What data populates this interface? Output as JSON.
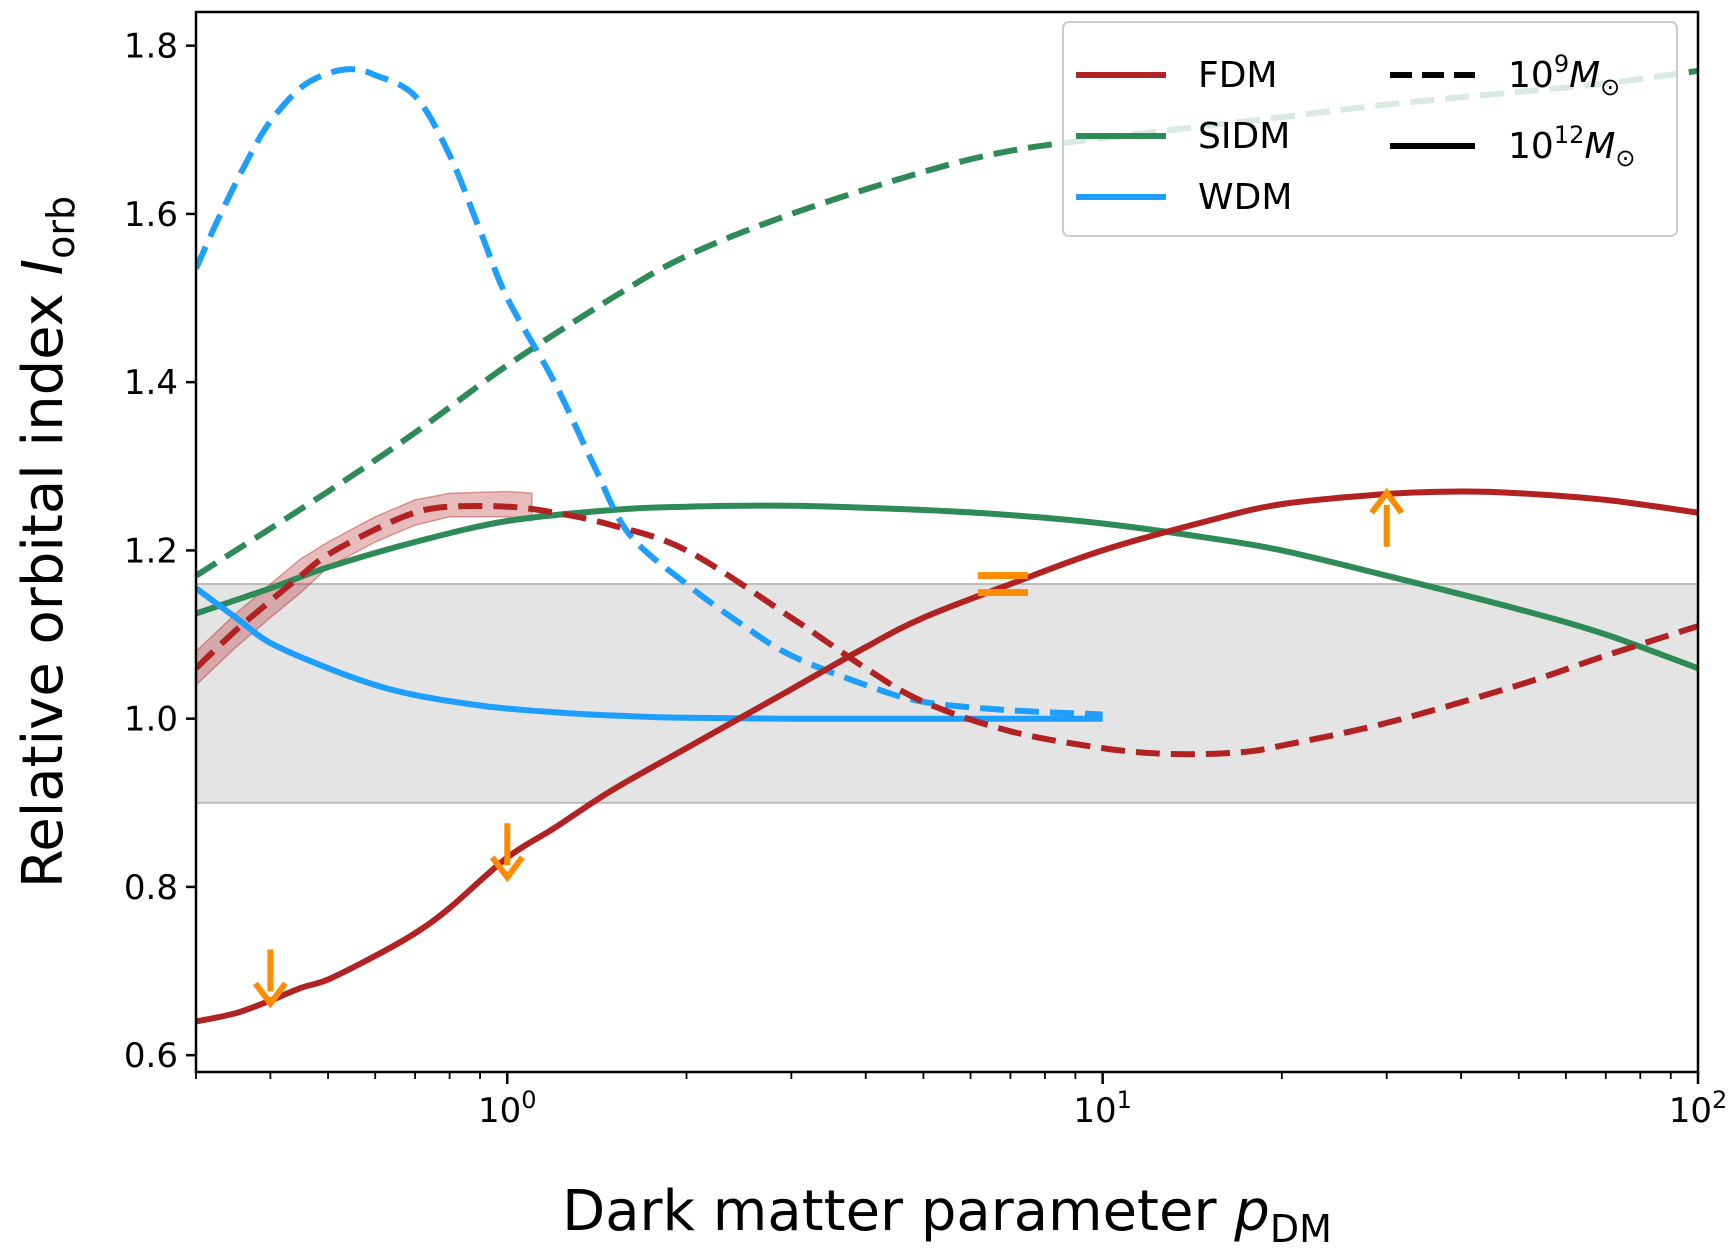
{
  "chart_data": {
    "type": "line",
    "xscale": "log",
    "xlim": [
      0.3,
      100
    ],
    "ylim": [
      0.58,
      1.84
    ],
    "xlabel": {
      "main": "Dark matter parameter ",
      "italic": "p",
      "sub": "DM"
    },
    "ylabel": {
      "main": "Relative orbital index ",
      "italic": "I",
      "sub": "orb"
    },
    "grid": false,
    "x_ticks": [
      {
        "value": 1,
        "base": "10",
        "exp": "0"
      },
      {
        "value": 10,
        "base": "10",
        "exp": "1"
      },
      {
        "value": 100,
        "base": "10",
        "exp": "2"
      }
    ],
    "y_ticks": [
      {
        "value": 0.6,
        "label": "0.6"
      },
      {
        "value": 0.8,
        "label": "0.8"
      },
      {
        "value": 1.0,
        "label": "1.0"
      },
      {
        "value": 1.2,
        "label": "1.2"
      },
      {
        "value": 1.4,
        "label": "1.4"
      },
      {
        "value": 1.6,
        "label": "1.6"
      },
      {
        "value": 1.8,
        "label": "1.8"
      }
    ],
    "colors": {
      "FDM": "#b22222",
      "SIDM": "#2e8b57",
      "WDM": "#1e9fff",
      "marker": "#ff8c00",
      "band": "#d3d3d3"
    },
    "band": {
      "ymin": 0.9,
      "ymax": 1.16
    },
    "legend": {
      "location": "top-right",
      "models": [
        {
          "label": "FDM",
          "color": "#b22222"
        },
        {
          "label": "SIDM",
          "color": "#2e8b57"
        },
        {
          "label": "WDM",
          "color": "#1e9fff"
        }
      ],
      "masses": [
        {
          "style": "dashed",
          "base": "10",
          "exp": "9",
          "unit": "M",
          "subscript": "⊙"
        },
        {
          "style": "solid",
          "base": "10",
          "exp": "12",
          "unit": "M",
          "subscript": "⊙"
        }
      ]
    },
    "series": [
      {
        "name": "SIDM 10^12 Msun",
        "model": "SIDM",
        "mass": "1e12",
        "style": "solid",
        "color": "#2e8b57",
        "x": [
          0.3,
          0.4,
          0.5,
          0.7,
          1.0,
          1.5,
          2,
          3,
          5,
          7,
          10,
          15,
          20,
          30,
          50,
          70,
          100
        ],
        "y": [
          1.125,
          1.155,
          1.18,
          1.21,
          1.235,
          1.248,
          1.252,
          1.253,
          1.248,
          1.242,
          1.232,
          1.215,
          1.2,
          1.17,
          1.13,
          1.1,
          1.06
        ]
      },
      {
        "name": "SIDM 10^9 Msun",
        "model": "SIDM",
        "mass": "1e9",
        "style": "dashed",
        "color": "#2e8b57",
        "x": [
          0.3,
          0.5,
          0.7,
          1.0,
          1.5,
          2,
          3,
          5,
          7,
          10,
          15,
          20,
          30,
          50,
          70,
          100
        ],
        "y": [
          1.17,
          1.27,
          1.34,
          1.42,
          1.5,
          1.55,
          1.6,
          1.65,
          1.675,
          1.69,
          1.705,
          1.715,
          1.73,
          1.745,
          1.755,
          1.77
        ]
      },
      {
        "name": "WDM 10^12 Msun",
        "model": "WDM",
        "mass": "1e12",
        "style": "solid",
        "color": "#1e9fff",
        "x": [
          0.3,
          0.35,
          0.4,
          0.5,
          0.6,
          0.7,
          0.85,
          1.0,
          1.3,
          1.6,
          2,
          3,
          5,
          7,
          10
        ],
        "y": [
          1.155,
          1.12,
          1.09,
          1.06,
          1.04,
          1.028,
          1.018,
          1.012,
          1.006,
          1.003,
          1.001,
          1.0,
          1.0,
          1.0,
          1.0
        ]
      },
      {
        "name": "WDM 10^9 Msun",
        "model": "WDM",
        "mass": "1e9",
        "style": "dashed",
        "color": "#1e9fff",
        "x": [
          0.3,
          0.33,
          0.37,
          0.4,
          0.45,
          0.5,
          0.55,
          0.6,
          0.7,
          0.8,
          0.9,
          1.0,
          1.2,
          1.4,
          1.6,
          2,
          2.5,
          3,
          4,
          5,
          7,
          10
        ],
        "y": [
          1.535,
          1.6,
          1.67,
          1.71,
          1.75,
          1.767,
          1.772,
          1.765,
          1.74,
          1.67,
          1.58,
          1.5,
          1.4,
          1.3,
          1.22,
          1.16,
          1.11,
          1.075,
          1.04,
          1.02,
          1.01,
          1.005
        ]
      },
      {
        "name": "FDM 10^12 Msun",
        "model": "FDM",
        "mass": "1e12",
        "style": "solid",
        "color": "#b22222",
        "x": [
          0.3,
          0.35,
          0.4,
          0.45,
          0.5,
          0.6,
          0.7,
          0.8,
          1.0,
          1.2,
          1.5,
          2,
          3,
          4,
          5,
          7,
          10,
          15,
          20,
          30,
          40,
          50,
          70,
          100
        ],
        "y": [
          0.64,
          0.65,
          0.665,
          0.68,
          0.69,
          0.718,
          0.745,
          0.775,
          0.835,
          0.87,
          0.915,
          0.965,
          1.035,
          1.085,
          1.12,
          1.16,
          1.2,
          1.235,
          1.255,
          1.267,
          1.27,
          1.268,
          1.26,
          1.245
        ]
      },
      {
        "name": "FDM 10^9 Msun",
        "model": "FDM",
        "mass": "1e9",
        "style": "dashed",
        "color": "#b22222",
        "x": [
          0.3,
          0.35,
          0.4,
          0.45,
          0.5,
          0.6,
          0.7,
          0.8,
          1.0,
          1.2,
          1.5,
          2,
          3,
          4,
          5,
          7,
          10,
          13,
          17,
          20,
          30,
          50,
          70,
          100
        ],
        "y": [
          1.06,
          1.105,
          1.14,
          1.17,
          1.195,
          1.225,
          1.245,
          1.252,
          1.252,
          1.245,
          1.23,
          1.2,
          1.12,
          1.06,
          1.02,
          0.985,
          0.965,
          0.958,
          0.96,
          0.968,
          0.995,
          1.04,
          1.075,
          1.11
        ]
      }
    ],
    "uncertainty_band": {
      "series": "FDM 10^9 Msun",
      "x": [
        0.3,
        0.35,
        0.4,
        0.45,
        0.5,
        0.6,
        0.7,
        0.8,
        1.0,
        1.1
      ],
      "ylow": [
        1.04,
        1.085,
        1.12,
        1.15,
        1.18,
        1.21,
        1.23,
        1.24,
        1.24,
        1.235
      ],
      "yhigh": [
        1.08,
        1.125,
        1.16,
        1.19,
        1.21,
        1.24,
        1.26,
        1.268,
        1.27,
        1.268
      ]
    },
    "limit_markers": [
      {
        "x": 0.4,
        "y": 0.69,
        "type": "upper"
      },
      {
        "x": 1.0,
        "y": 0.84,
        "type": "upper"
      },
      {
        "x": 6.8,
        "y": 1.16,
        "type": "equal"
      },
      {
        "x": 30,
        "y": 1.24,
        "type": "lower"
      }
    ]
  }
}
